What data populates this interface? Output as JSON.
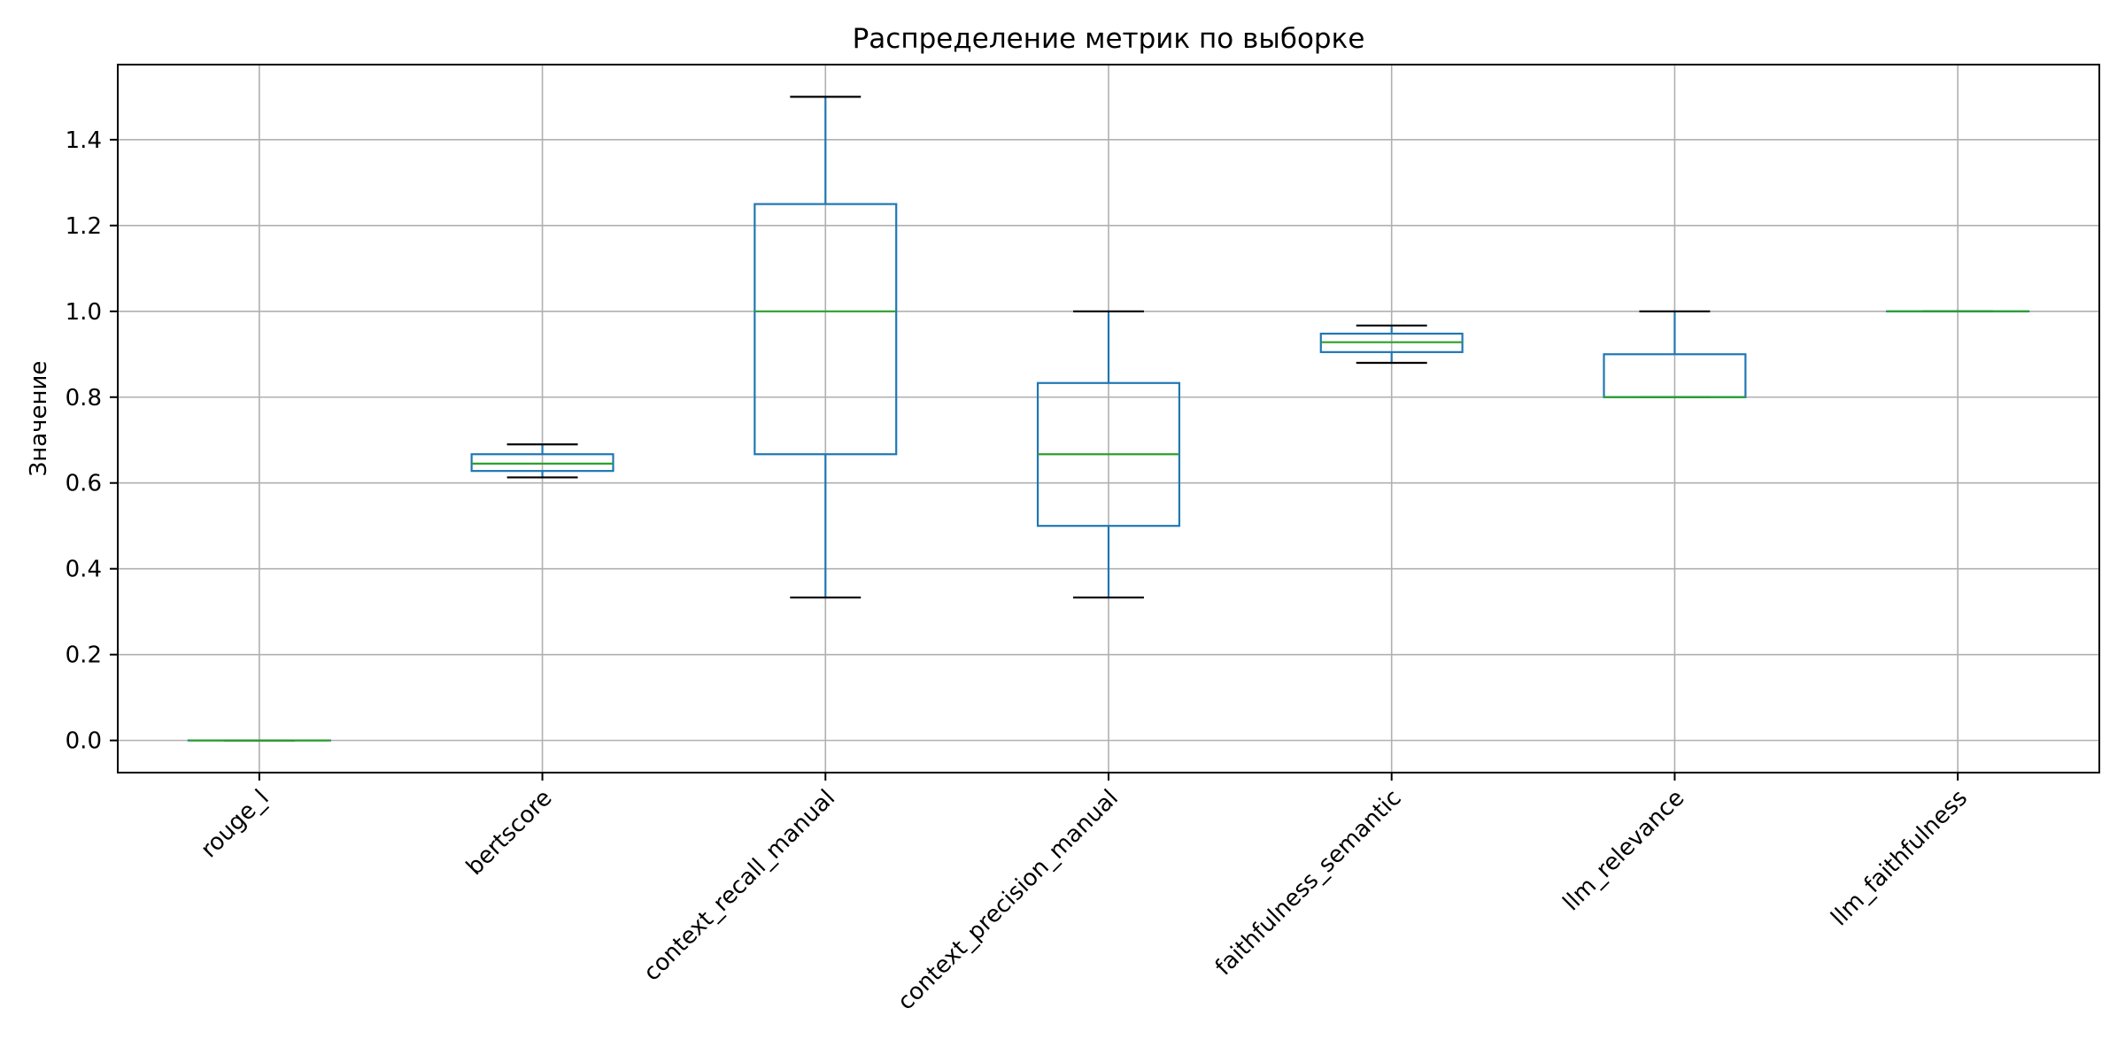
{
  "chart_data": {
    "type": "boxplot",
    "title": "Распределение метрик по выборке",
    "xlabel": "",
    "ylabel": "Значение",
    "ylim": [
      -0.075,
      1.575
    ],
    "yticks": [
      0.0,
      0.2,
      0.4,
      0.6,
      0.8,
      1.0,
      1.2,
      1.4
    ],
    "ytick_labels": [
      "0.0",
      "0.2",
      "0.4",
      "0.6",
      "0.8",
      "1.0",
      "1.2",
      "1.4"
    ],
    "grid": true,
    "categories": [
      "rouge_l",
      "bertscore",
      "context_recall_manual",
      "context_precision_manual",
      "faithfulness_semantic",
      "llm_relevance",
      "llm_faithfulness"
    ],
    "boxes": [
      {
        "min": 0.0,
        "q1": 0.0,
        "median": 0.0,
        "q3": 0.0,
        "max": 0.0
      },
      {
        "min": 0.613,
        "q1": 0.628,
        "median": 0.645,
        "q3": 0.667,
        "max": 0.69
      },
      {
        "min": 0.333,
        "q1": 0.667,
        "median": 1.0,
        "q3": 1.25,
        "max": 1.5
      },
      {
        "min": 0.333,
        "q1": 0.5,
        "median": 0.667,
        "q3": 0.833,
        "max": 1.0
      },
      {
        "min": 0.88,
        "q1": 0.905,
        "median": 0.928,
        "q3": 0.948,
        "max": 0.967
      },
      {
        "min": 0.8,
        "q1": 0.8,
        "median": 0.8,
        "q3": 0.9,
        "max": 1.0
      },
      {
        "min": 1.0,
        "q1": 1.0,
        "median": 1.0,
        "q3": 1.0,
        "max": 1.0
      }
    ],
    "colors": {
      "box": "#1f77b4",
      "median": "#2ca02c",
      "cap": "#000000",
      "grid": "#b0b0b0"
    }
  }
}
